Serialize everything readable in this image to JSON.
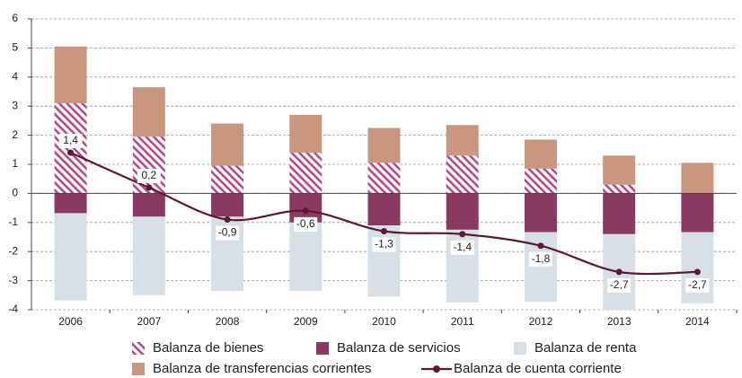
{
  "chart_data": {
    "type": "bar",
    "categories": [
      "2006",
      "2007",
      "2008",
      "2009",
      "2010",
      "2011",
      "2012",
      "2013",
      "2014"
    ],
    "series": [
      {
        "name": "Balanza de bienes",
        "color": "#b5488a",
        "hatch": true,
        "values": [
          3.1,
          1.95,
          0.95,
          1.4,
          1.05,
          1.3,
          0.85,
          0.3,
          0
        ]
      },
      {
        "name": "Balanza de servicios",
        "color": "#8a3a62",
        "values": [
          -0.68,
          -0.8,
          -0.8,
          -1.0,
          -1.1,
          -1.25,
          -1.33,
          -1.4,
          -1.33
        ]
      },
      {
        "name": "Balanza de renta",
        "color": "#d8e0e7",
        "values": [
          -3.0,
          -2.7,
          -2.55,
          -2.35,
          -2.45,
          -2.5,
          -2.4,
          -2.6,
          -2.45
        ]
      },
      {
        "name": "Balanza de transferencias corrientes",
        "color": "#c9977e",
        "values": [
          1.95,
          1.7,
          1.45,
          1.3,
          1.2,
          1.05,
          1.0,
          1.0,
          1.05
        ]
      },
      {
        "name": "Balanza de cuenta corriente",
        "type": "line",
        "color": "#5a1a34",
        "values": [
          1.4,
          0.2,
          -0.9,
          -0.6,
          -1.3,
          -1.4,
          -1.8,
          -2.7,
          -2.7
        ],
        "value_labels": [
          "1,4",
          "0,2",
          "-0,9",
          "-0,6",
          "-1,3",
          "-1,4",
          "-1,8",
          "-2,7",
          "-2,7"
        ]
      }
    ],
    "ylim": [
      -4,
      6
    ],
    "yticks": [
      -4,
      -3,
      -2,
      -1,
      0,
      1,
      2,
      3,
      4,
      5,
      6
    ],
    "grid": true,
    "legend": "bottom"
  }
}
